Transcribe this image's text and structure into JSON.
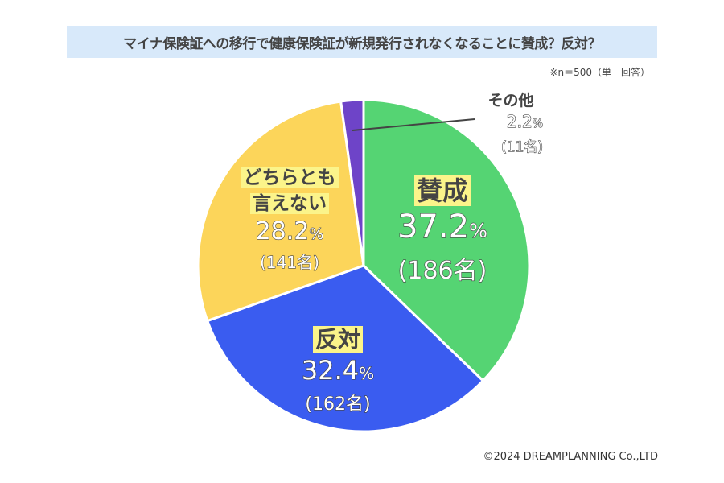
{
  "chart_data": {
    "type": "pie",
    "title": "マイナ保険証への移行で健康保険証が新規発行されなくなることに賛成？反対？",
    "note": "※n＝500（単一回答）",
    "start": "top",
    "direction": "clockwise",
    "slices": [
      {
        "label": "賛成",
        "value": 37.2,
        "pct_text": "37.2",
        "count_text": "(186名)",
        "color": "#55d473"
      },
      {
        "label": "反対",
        "value": 32.4,
        "pct_text": "32.4",
        "count_text": "(162名)",
        "color": "#3a5cf0"
      },
      {
        "label_lines": [
          "どちらとも",
          "言えない"
        ],
        "value": 28.2,
        "pct_text": "28.2",
        "count_text": "(141名)",
        "color": "#fcd55a"
      },
      {
        "label": "その他",
        "value": 2.2,
        "pct_text": "2.2",
        "count_text": "(11名)",
        "color": "#6e44c8"
      }
    ],
    "pct_unit": "%"
  },
  "copyright": "©2024 DREAMPLANNING Co.,LTD"
}
